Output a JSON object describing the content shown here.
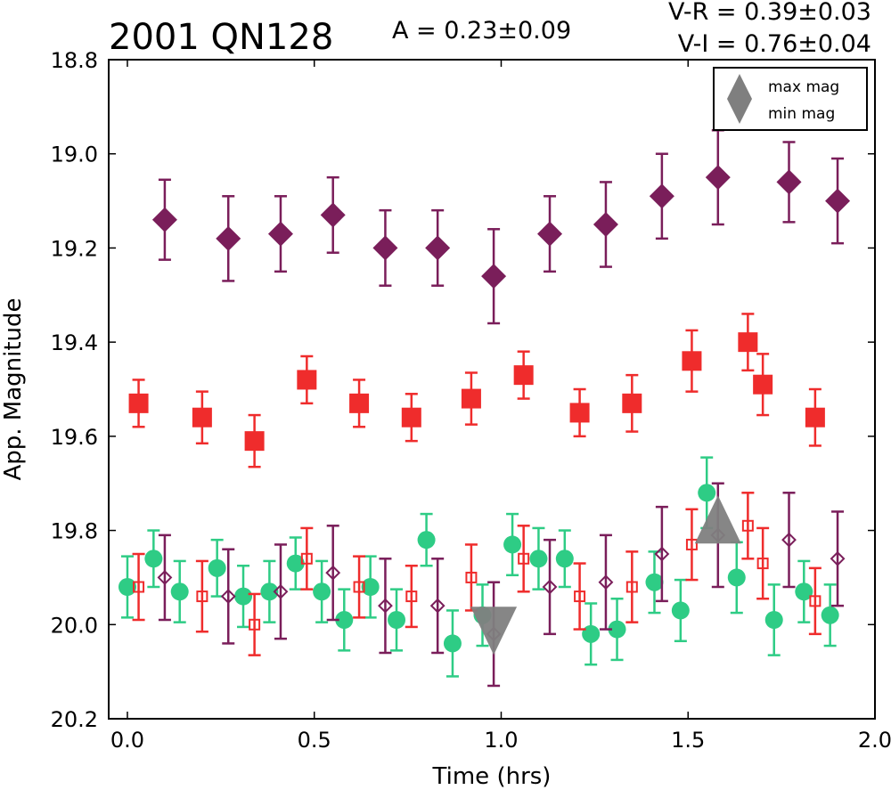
{
  "chart_data": {
    "type": "scatter",
    "title": "2001 QN128",
    "amplitude_text": "A  = 0.23±0.09",
    "color_text_1": "V-R = 0.39±0.03",
    "color_text_2": "V-I  = 0.76±0.04",
    "xlabel": "Time (hrs)",
    "ylabel": "App. Magnitude",
    "xlim": [
      -0.05,
      2.0
    ],
    "ylim": [
      20.2,
      18.8
    ],
    "y_inverted": true,
    "xticks": [
      "0.0",
      "0.5",
      "1.0",
      "1.5",
      "2.0"
    ],
    "yticks": [
      "18.8",
      "19.0",
      "19.2",
      "19.4",
      "19.6",
      "19.8",
      "20.0",
      "20.2"
    ],
    "legend_position": "top-right",
    "legend": [
      {
        "marker": "triangle-up",
        "label": "max mag"
      },
      {
        "marker": "triangle-down",
        "label": "min mag"
      }
    ],
    "series": [
      {
        "marker": "diamond",
        "color": "#7a1e5a",
        "filled": true,
        "x": [
          0.1,
          0.27,
          0.41,
          0.55,
          0.69,
          0.83,
          0.98,
          1.13,
          1.28,
          1.43,
          1.58,
          1.77,
          1.9
        ],
        "y": [
          19.14,
          19.18,
          19.17,
          19.13,
          19.2,
          19.2,
          19.26,
          19.17,
          19.15,
          19.09,
          19.05,
          19.06,
          19.1
        ],
        "err": [
          0.085,
          0.09,
          0.08,
          0.08,
          0.08,
          0.08,
          0.1,
          0.08,
          0.09,
          0.09,
          0.1,
          0.085,
          0.09
        ]
      },
      {
        "marker": "square",
        "color": "#ef2c2c",
        "filled": true,
        "x": [
          0.03,
          0.2,
          0.34,
          0.48,
          0.62,
          0.76,
          0.92,
          1.06,
          1.21,
          1.35,
          1.51,
          1.66,
          1.7,
          1.84
        ],
        "y": [
          19.53,
          19.56,
          19.61,
          19.48,
          19.53,
          19.56,
          19.52,
          19.47,
          19.55,
          19.53,
          19.44,
          19.4,
          19.49,
          19.56
        ],
        "err": [
          0.05,
          0.055,
          0.055,
          0.05,
          0.05,
          0.05,
          0.055,
          0.05,
          0.05,
          0.06,
          0.065,
          0.06,
          0.065,
          0.06
        ]
      },
      {
        "marker": "circle",
        "color": "#2ecc85",
        "filled": true,
        "x": [
          0.0,
          0.07,
          0.14,
          0.24,
          0.31,
          0.38,
          0.45,
          0.52,
          0.58,
          0.65,
          0.72,
          0.8,
          0.87,
          0.95,
          1.03,
          1.1,
          1.17,
          1.24,
          1.31,
          1.41,
          1.48,
          1.55,
          1.63,
          1.73,
          1.81,
          1.88
        ],
        "y": [
          19.92,
          19.86,
          19.93,
          19.88,
          19.94,
          19.93,
          19.87,
          19.93,
          19.99,
          19.92,
          19.99,
          19.82,
          20.04,
          19.98,
          19.83,
          19.86,
          19.86,
          20.02,
          20.01,
          19.91,
          19.97,
          19.72,
          19.9,
          19.99,
          19.93,
          19.98
        ],
        "err": [
          0.065,
          0.06,
          0.065,
          0.06,
          0.065,
          0.065,
          0.055,
          0.065,
          0.065,
          0.065,
          0.065,
          0.055,
          0.07,
          0.065,
          0.065,
          0.065,
          0.06,
          0.065,
          0.065,
          0.065,
          0.065,
          0.075,
          0.075,
          0.075,
          0.065,
          0.065
        ]
      },
      {
        "marker": "square",
        "color": "#ef2c2c",
        "filled": false,
        "x": [
          0.03,
          0.2,
          0.34,
          0.48,
          0.62,
          0.76,
          0.92,
          1.06,
          1.21,
          1.35,
          1.51,
          1.66,
          1.7,
          1.84
        ],
        "y": [
          19.92,
          19.94,
          20.0,
          19.86,
          19.92,
          19.94,
          19.9,
          19.86,
          19.94,
          19.92,
          19.83,
          19.79,
          19.87,
          19.95
        ],
        "err": [
          0.07,
          0.075,
          0.065,
          0.065,
          0.065,
          0.065,
          0.07,
          0.07,
          0.07,
          0.075,
          0.075,
          0.07,
          0.075,
          0.07
        ]
      },
      {
        "marker": "diamond",
        "color": "#7a1e5a",
        "filled": false,
        "x": [
          0.1,
          0.27,
          0.41,
          0.55,
          0.69,
          0.83,
          0.98,
          1.13,
          1.28,
          1.43,
          1.58,
          1.77,
          1.9
        ],
        "y": [
          19.9,
          19.94,
          19.93,
          19.89,
          19.96,
          19.96,
          20.02,
          19.92,
          19.91,
          19.85,
          19.81,
          19.82,
          19.86
        ],
        "err": [
          0.09,
          0.1,
          0.1,
          0.1,
          0.1,
          0.1,
          0.11,
          0.1,
          0.1,
          0.1,
          0.11,
          0.1,
          0.1
        ]
      }
    ],
    "markers": [
      {
        "type": "triangle-up",
        "label": "max mag",
        "x": 1.58,
        "y": 19.79,
        "color": "#7f7f7f"
      },
      {
        "type": "triangle-down",
        "label": "min mag",
        "x": 0.98,
        "y": 20.0,
        "color": "#7f7f7f"
      }
    ]
  }
}
